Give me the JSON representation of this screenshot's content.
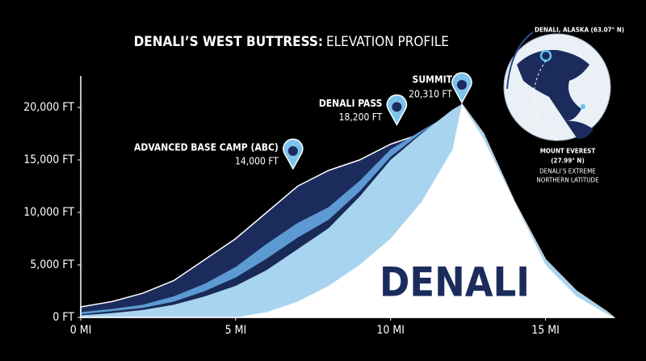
{
  "chart_data": {
    "type": "area",
    "title": "DENALI’S WEST BUTTRESS:",
    "subtitle": "ELEVATION PROFILE",
    "watermark": "DENALI",
    "x": [
      0,
      1,
      2,
      3,
      4,
      5,
      6,
      7,
      8,
      9,
      10,
      11,
      12,
      12.3,
      13,
      14,
      15,
      16,
      17,
      17.2
    ],
    "series": [
      {
        "color": "#1b2c5c",
        "values": [
          1000,
          1500,
          2300,
          3500,
          5500,
          7500,
          10000,
          12500,
          14000,
          15000,
          16500,
          17500,
          19000,
          20310,
          17500,
          11000,
          5500,
          2500,
          500,
          0
        ]
      },
      {
        "color": "#5d9ad3",
        "values": [
          500,
          800,
          1200,
          2000,
          3200,
          4800,
          7000,
          9000,
          10500,
          13000,
          16000,
          17800,
          19500,
          20310,
          17500,
          11000,
          5500,
          2500,
          500,
          0
        ]
      },
      {
        "color": "#1a2a56",
        "values": [
          300,
          600,
          900,
          1500,
          2500,
          3800,
          5600,
          7600,
          9300,
          12000,
          15300,
          17600,
          19600,
          20310,
          17500,
          11000,
          5500,
          2500,
          500,
          0
        ]
      },
      {
        "color": "#a9d4f0",
        "values": [
          200,
          400,
          700,
          1200,
          2000,
          3000,
          4500,
          6500,
          8500,
          11500,
          15000,
          17500,
          19800,
          20310,
          17500,
          11000,
          5500,
          2500,
          500,
          0
        ]
      },
      {
        "color": "#ffffff",
        "values": [
          0,
          0,
          0,
          0,
          0,
          0,
          500,
          1500,
          3000,
          5000,
          7500,
          11000,
          16000,
          20310,
          17000,
          11000,
          5000,
          2000,
          300,
          0
        ]
      }
    ],
    "xlim": [
      0,
      17.2
    ],
    "ylim": [
      0,
      23000
    ],
    "xticks": [
      {
        "value": 0,
        "label": "0 MI"
      },
      {
        "value": 5,
        "label": "5 MI"
      },
      {
        "value": 10,
        "label": "10 MI"
      },
      {
        "value": 15,
        "label": "15 MI"
      }
    ],
    "yticks": [
      {
        "value": 0,
        "label": "0 FT"
      },
      {
        "value": 5000,
        "label": "5,000 FT"
      },
      {
        "value": 10000,
        "label": "10,000 FT"
      },
      {
        "value": 15000,
        "label": "15,000 FT"
      },
      {
        "value": 20000,
        "label": "20,000 FT"
      }
    ],
    "annotations": [
      {
        "text": "ADVANCED BASE CAMP (ABC)",
        "x": 6.85,
        "y": {
          "value": 14000,
          "label": "14,000 FT"
        }
      },
      {
        "text": "DENALI PASS",
        "x": 10.2,
        "y": {
          "value": 18200,
          "label": "18,200 FT"
        }
      },
      {
        "text": "SUMMIT",
        "x": 12.3,
        "y": {
          "value": 20310,
          "label": "20,310 FT"
        }
      }
    ],
    "inset": {
      "origin": "DENALI, ALASKA (63.07° N)",
      "compare": "MOUNT EVEREST",
      "compare_lat": "(27.99° N)",
      "note": [
        "DENALI’S EXTREME",
        "NORTHERN LATITUDE"
      ]
    }
  }
}
